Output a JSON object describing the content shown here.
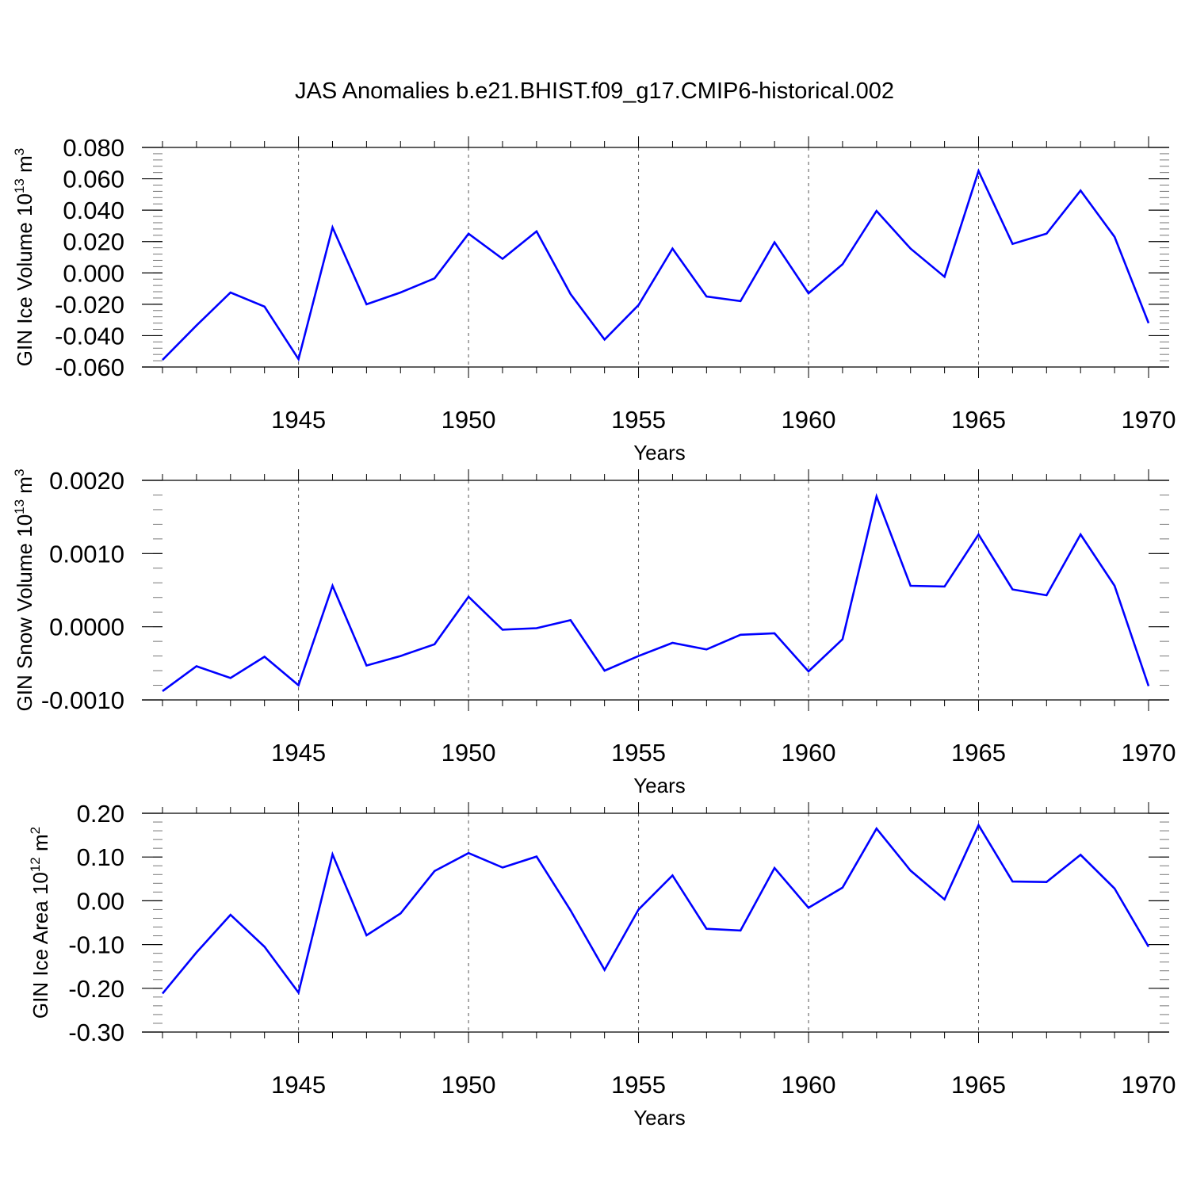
{
  "title": "JAS Anomalies b.e21.BHIST.f09_g17.CMIP6-historical.002",
  "line_color": "#0000ff",
  "chart_data": [
    {
      "type": "line",
      "ylabel": "GIN Ice Volume 10",
      "ylabel_exp": "13",
      "ylabel_unit": "m",
      "ylabel_unit_exp": "3",
      "xlabel": "Years",
      "xlim": [
        1941,
        1970
      ],
      "ylim": [
        -0.06,
        0.08
      ],
      "yticks": [
        -0.06,
        -0.04,
        -0.02,
        0.0,
        0.02,
        0.04,
        0.06,
        0.08
      ],
      "ytick_labels": [
        "-0.060",
        "-0.040",
        "-0.020",
        "0.000",
        "0.020",
        "0.040",
        "0.060",
        "0.080"
      ],
      "yminor": 0.004,
      "xticks": [
        1945,
        1950,
        1955,
        1960,
        1965,
        1970
      ],
      "xtick_labels": [
        "1945",
        "1950",
        "1955",
        "1960",
        "1965",
        "1970"
      ],
      "x": [
        1941,
        1942,
        1943,
        1944,
        1945,
        1946,
        1947,
        1948,
        1949,
        1950,
        1951,
        1952,
        1953,
        1954,
        1955,
        1956,
        1957,
        1958,
        1959,
        1960,
        1961,
        1962,
        1963,
        1964,
        1965,
        1966,
        1967,
        1968,
        1969,
        1970
      ],
      "values": [
        -0.0555,
        -0.0335,
        -0.0125,
        -0.0215,
        -0.055,
        0.029,
        -0.02,
        -0.0125,
        -0.0035,
        0.025,
        0.009,
        0.0265,
        -0.0135,
        -0.0425,
        -0.0205,
        0.0155,
        -0.015,
        -0.018,
        0.0195,
        -0.013,
        0.0055,
        0.0395,
        0.0155,
        -0.0025,
        0.065,
        0.0185,
        0.025,
        0.0525,
        0.023,
        -0.032
      ]
    },
    {
      "type": "line",
      "ylabel": "GIN Snow Volume 10",
      "ylabel_exp": "13",
      "ylabel_unit": "m",
      "ylabel_unit_exp": "3",
      "xlabel": "Years",
      "xlim": [
        1941,
        1970
      ],
      "ylim": [
        -0.001,
        0.002
      ],
      "yticks": [
        -0.001,
        0.0,
        0.001,
        0.002
      ],
      "ytick_labels": [
        "-0.0010",
        "0.0000",
        "0.0010",
        "0.0020"
      ],
      "yminor": 0.0002,
      "xticks": [
        1945,
        1950,
        1955,
        1960,
        1965,
        1970
      ],
      "xtick_labels": [
        "1945",
        "1950",
        "1955",
        "1960",
        "1965",
        "1970"
      ],
      "x": [
        1941,
        1942,
        1943,
        1944,
        1945,
        1946,
        1947,
        1948,
        1949,
        1950,
        1951,
        1952,
        1953,
        1954,
        1955,
        1956,
        1957,
        1958,
        1959,
        1960,
        1961,
        1962,
        1963,
        1964,
        1965,
        1966,
        1967,
        1968,
        1969,
        1970
      ],
      "values": [
        -0.00088,
        -0.00054,
        -0.0007,
        -0.00041,
        -0.0008,
        0.00056,
        -0.00053,
        -0.0004,
        -0.00024,
        0.00041,
        -4e-05,
        -2e-05,
        9e-05,
        -0.0006,
        -0.0004,
        -0.00022,
        -0.00031,
        -0.00011,
        -9e-05,
        -0.00061,
        -0.00017,
        0.00178,
        0.00056,
        0.00055,
        0.00126,
        0.00051,
        0.00043,
        0.00126,
        0.00056,
        -0.00081
      ]
    },
    {
      "type": "line",
      "ylabel": "GIN Ice Area 10",
      "ylabel_exp": "12",
      "ylabel_unit": "m",
      "ylabel_unit_exp": "2",
      "xlabel": "Years",
      "xlim": [
        1941,
        1970
      ],
      "ylim": [
        -0.3,
        0.2
      ],
      "yticks": [
        -0.3,
        -0.2,
        -0.1,
        0.0,
        0.1,
        0.2
      ],
      "ytick_labels": [
        "-0.30",
        "-0.20",
        "-0.10",
        "0.00",
        "0.10",
        "0.20"
      ],
      "yminor": 0.02,
      "xticks": [
        1945,
        1950,
        1955,
        1960,
        1965,
        1970
      ],
      "xtick_labels": [
        "1945",
        "1950",
        "1955",
        "1960",
        "1965",
        "1970"
      ],
      "x": [
        1941,
        1942,
        1943,
        1944,
        1945,
        1946,
        1947,
        1948,
        1949,
        1950,
        1951,
        1952,
        1953,
        1954,
        1955,
        1956,
        1957,
        1958,
        1959,
        1960,
        1961,
        1962,
        1963,
        1964,
        1965,
        1966,
        1967,
        1968,
        1969,
        1970
      ],
      "values": [
        -0.212,
        -0.118,
        -0.032,
        -0.105,
        -0.21,
        0.106,
        -0.079,
        -0.029,
        0.068,
        0.109,
        0.076,
        0.101,
        -0.022,
        -0.158,
        -0.02,
        0.058,
        -0.064,
        -0.068,
        0.075,
        -0.016,
        0.03,
        0.165,
        0.069,
        0.003,
        0.173,
        0.044,
        0.043,
        0.105,
        0.028,
        -0.105
      ]
    }
  ]
}
